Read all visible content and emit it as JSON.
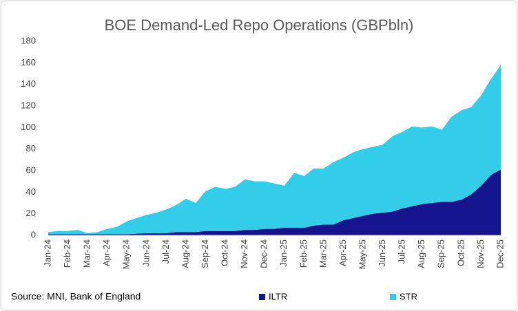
{
  "chart_data": {
    "type": "stacked_area",
    "title": "BOE Demand-Led Repo Operations (GBPbln)",
    "source": "Source: MNI, Bank of England",
    "categories": [
      "Jan-24",
      null,
      "Feb-24",
      null,
      "Mar-24",
      null,
      "Apr-24",
      null,
      "May-24",
      null,
      "Jun-24",
      null,
      "Jul-24",
      null,
      "Aug-24",
      null,
      "Sep-24",
      null,
      "Oct-24",
      null,
      "Nov-24",
      null,
      "Dec-24",
      null,
      "Jan-25",
      null,
      "Feb-25",
      null,
      "Mar-25",
      null,
      "Apr-25",
      null,
      "May-25",
      null,
      "Jun-25",
      null,
      "Jul-25",
      null,
      "Aug-25",
      null,
      "Sep-25",
      null,
      "Oct-25",
      null,
      "Nov-25",
      null,
      "Dec-25"
    ],
    "series": [
      {
        "name": "ILTR",
        "color": "#15148c",
        "values": [
          1,
          1,
          1,
          1,
          1,
          1,
          1,
          1,
          1,
          1.5,
          2,
          2,
          2,
          3,
          3,
          3,
          4,
          4,
          4,
          4,
          5,
          5,
          6,
          6,
          7,
          7,
          7,
          9,
          10,
          10,
          14,
          16,
          18,
          20,
          21,
          22,
          25,
          27,
          29,
          30,
          31,
          31,
          33,
          38,
          46,
          56,
          61
        ]
      },
      {
        "name": "STR",
        "color": "#33cdea",
        "values": [
          2,
          3,
          3,
          4,
          1,
          2,
          5,
          7,
          12,
          14.5,
          17,
          19,
          22,
          25,
          31,
          27,
          37,
          41,
          39,
          41,
          47,
          45,
          44,
          42,
          39,
          51,
          48,
          53,
          52,
          58,
          58,
          61,
          62,
          62,
          63,
          70,
          71,
          74,
          71,
          71,
          67,
          79,
          83,
          81,
          84,
          89,
          97
        ]
      }
    ],
    "ylim": [
      0,
      180
    ],
    "yticks": [
      0,
      20,
      40,
      60,
      80,
      100,
      120,
      140,
      160,
      180
    ],
    "grid": false
  }
}
